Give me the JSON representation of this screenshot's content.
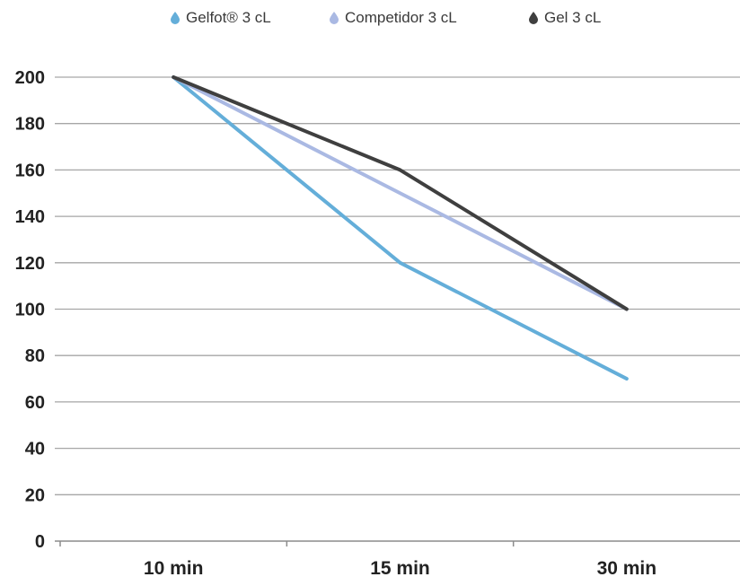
{
  "chart_data": {
    "type": "line",
    "categories": [
      "10 min",
      "15 min",
      "30 min"
    ],
    "series": [
      {
        "name": "Gelfot® 3 cL",
        "values": [
          200,
          120,
          70
        ],
        "color": "#64aed9"
      },
      {
        "name": "Competidor 3 cL",
        "values": [
          200,
          150,
          100
        ],
        "color": "#aab9e3"
      },
      {
        "name": "Gel 3 cL",
        "values": [
          200,
          160,
          100
        ],
        "color": "#3f3f3f"
      }
    ],
    "yticks": [
      0,
      20,
      40,
      60,
      80,
      100,
      120,
      140,
      160,
      180,
      200
    ],
    "ylim": [
      0,
      200
    ],
    "grid": true,
    "legend_position": "top-center",
    "legend_marker": "drop-icon"
  }
}
